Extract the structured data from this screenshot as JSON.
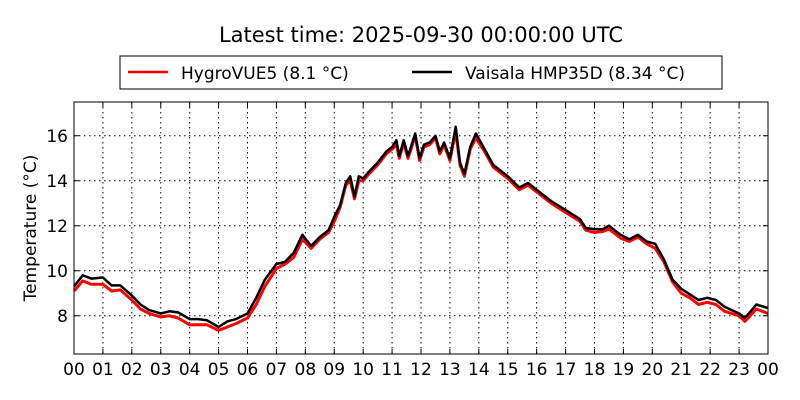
{
  "chart_data": {
    "type": "line",
    "title": "Latest time: 2025-09-30 00:00:00 UTC",
    "xlabel": "",
    "ylabel": "Temperature (°C)",
    "xlim": [
      0,
      24
    ],
    "ylim": [
      6.3,
      17.5
    ],
    "grid": true,
    "legend_placement": "top-center",
    "xticks": [
      0,
      1,
      2,
      3,
      4,
      5,
      6,
      7,
      8,
      9,
      10,
      11,
      12,
      13,
      14,
      15,
      16,
      17,
      18,
      19,
      20,
      21,
      22,
      23,
      24
    ],
    "xtick_labels": [
      "00",
      "01",
      "02",
      "03",
      "04",
      "05",
      "06",
      "07",
      "08",
      "09",
      "10",
      "11",
      "12",
      "13",
      "14",
      "15",
      "16",
      "17",
      "18",
      "19",
      "20",
      "21",
      "22",
      "23",
      "00"
    ],
    "yticks": [
      8,
      10,
      12,
      14,
      16
    ],
    "ytick_labels": [
      "8",
      "10",
      "12",
      "14",
      "16"
    ],
    "x": [
      0,
      0.3,
      0.6,
      1,
      1.3,
      1.6,
      2,
      2.3,
      2.6,
      3,
      3.3,
      3.6,
      4,
      4.3,
      4.6,
      5,
      5.3,
      5.6,
      6,
      6.3,
      6.6,
      7,
      7.3,
      7.6,
      7.9,
      8.2,
      8.5,
      8.8,
      9,
      9.2,
      9.4,
      9.55,
      9.7,
      9.85,
      10,
      10.2,
      10.5,
      10.8,
      11,
      11.15,
      11.25,
      11.4,
      11.55,
      11.8,
      11.95,
      12.1,
      12.3,
      12.5,
      12.65,
      12.8,
      13,
      13.2,
      13.35,
      13.5,
      13.7,
      13.9,
      14.2,
      14.5,
      15,
      15.4,
      15.7,
      16,
      16.5,
      17,
      17.5,
      17.7,
      18,
      18.3,
      18.5,
      18.9,
      19.2,
      19.5,
      19.8,
      20.1,
      20.4,
      20.7,
      21,
      21.3,
      21.6,
      21.9,
      22.2,
      22.5,
      23,
      23.2,
      23.6,
      24
    ],
    "series": [
      {
        "name": "HygroVUE5 (8.1 °C)",
        "color": "#ff0000",
        "values": [
          9.1,
          9.55,
          9.4,
          9.4,
          9.1,
          9.15,
          8.7,
          8.3,
          8.1,
          7.95,
          8.0,
          7.9,
          7.6,
          7.6,
          7.6,
          7.35,
          7.5,
          7.65,
          7.9,
          8.5,
          9.3,
          10.1,
          10.3,
          10.6,
          11.4,
          11.0,
          11.4,
          11.7,
          12.2,
          12.8,
          13.8,
          14.0,
          13.2,
          14.0,
          14.0,
          14.3,
          14.7,
          15.2,
          15.4,
          15.6,
          15.0,
          15.7,
          15.0,
          16.0,
          14.9,
          15.5,
          15.6,
          15.9,
          15.2,
          15.6,
          14.9,
          16.2,
          14.7,
          14.2,
          15.4,
          15.9,
          15.3,
          14.6,
          14.1,
          13.6,
          13.8,
          13.5,
          13.0,
          12.6,
          12.2,
          11.8,
          11.7,
          11.75,
          11.85,
          11.45,
          11.3,
          11.5,
          11.2,
          11.0,
          10.4,
          9.5,
          9.0,
          8.8,
          8.5,
          8.6,
          8.5,
          8.2,
          8.0,
          7.75,
          8.3,
          8.1
        ]
      },
      {
        "name": "Vaisala HMP35D (8.34 °C)",
        "color": "#000000",
        "values": [
          9.3,
          9.8,
          9.65,
          9.7,
          9.35,
          9.35,
          8.9,
          8.5,
          8.25,
          8.1,
          8.2,
          8.15,
          7.85,
          7.85,
          7.8,
          7.5,
          7.75,
          7.85,
          8.1,
          8.8,
          9.6,
          10.3,
          10.4,
          10.8,
          11.6,
          11.1,
          11.5,
          11.8,
          12.4,
          12.9,
          13.9,
          14.2,
          13.3,
          14.2,
          14.1,
          14.4,
          14.8,
          15.3,
          15.5,
          15.8,
          15.1,
          15.8,
          15.1,
          16.1,
          15.0,
          15.6,
          15.7,
          16.0,
          15.3,
          15.7,
          15.0,
          16.4,
          14.8,
          14.3,
          15.5,
          16.1,
          15.4,
          14.7,
          14.2,
          13.7,
          13.9,
          13.6,
          13.1,
          12.7,
          12.3,
          11.9,
          11.85,
          11.85,
          12.0,
          11.6,
          11.4,
          11.6,
          11.3,
          11.2,
          10.5,
          9.6,
          9.2,
          8.95,
          8.7,
          8.8,
          8.7,
          8.4,
          8.1,
          7.9,
          8.5,
          8.34
        ]
      }
    ]
  }
}
